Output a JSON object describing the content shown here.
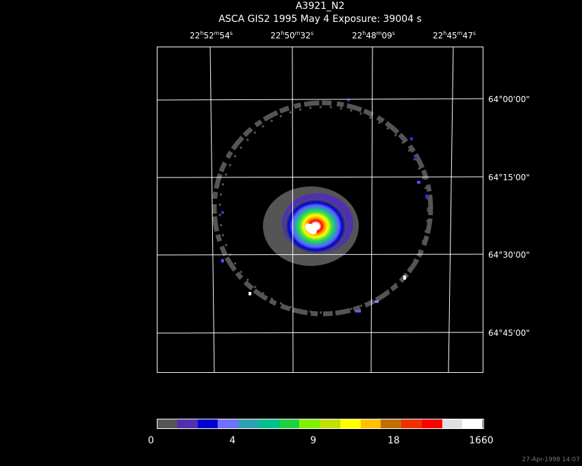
{
  "title": "A3921_N2",
  "subtitle": "ASCA GIS2   1995 May  4    Exposure: 39004 s",
  "ra_labels": [
    {
      "h": "22",
      "m": "52",
      "s": "54"
    },
    {
      "h": "22",
      "m": "50",
      "s": "32"
    },
    {
      "h": "22",
      "m": "48",
      "s": "09"
    },
    {
      "h": "22",
      "m": "45",
      "s": "47"
    }
  ],
  "dec_labels": [
    "64°00'00\"",
    "64°15'00\"",
    "64°30'00\"",
    "64°45'00\""
  ],
  "colorbar": {
    "colors": [
      "#555555",
      "#5030b0",
      "#0000d0",
      "#7070ff",
      "#30a0b0",
      "#00c090",
      "#20d040",
      "#80f000",
      "#c0e000",
      "#ffff00",
      "#ffc000",
      "#c07000",
      "#f03000",
      "#ff0000",
      "#e0e0e0",
      "#ffffff"
    ],
    "labels": [
      "0",
      "4",
      "9",
      "18",
      "1660"
    ]
  },
  "timestamp": "27-Apr-1998 14:07"
}
